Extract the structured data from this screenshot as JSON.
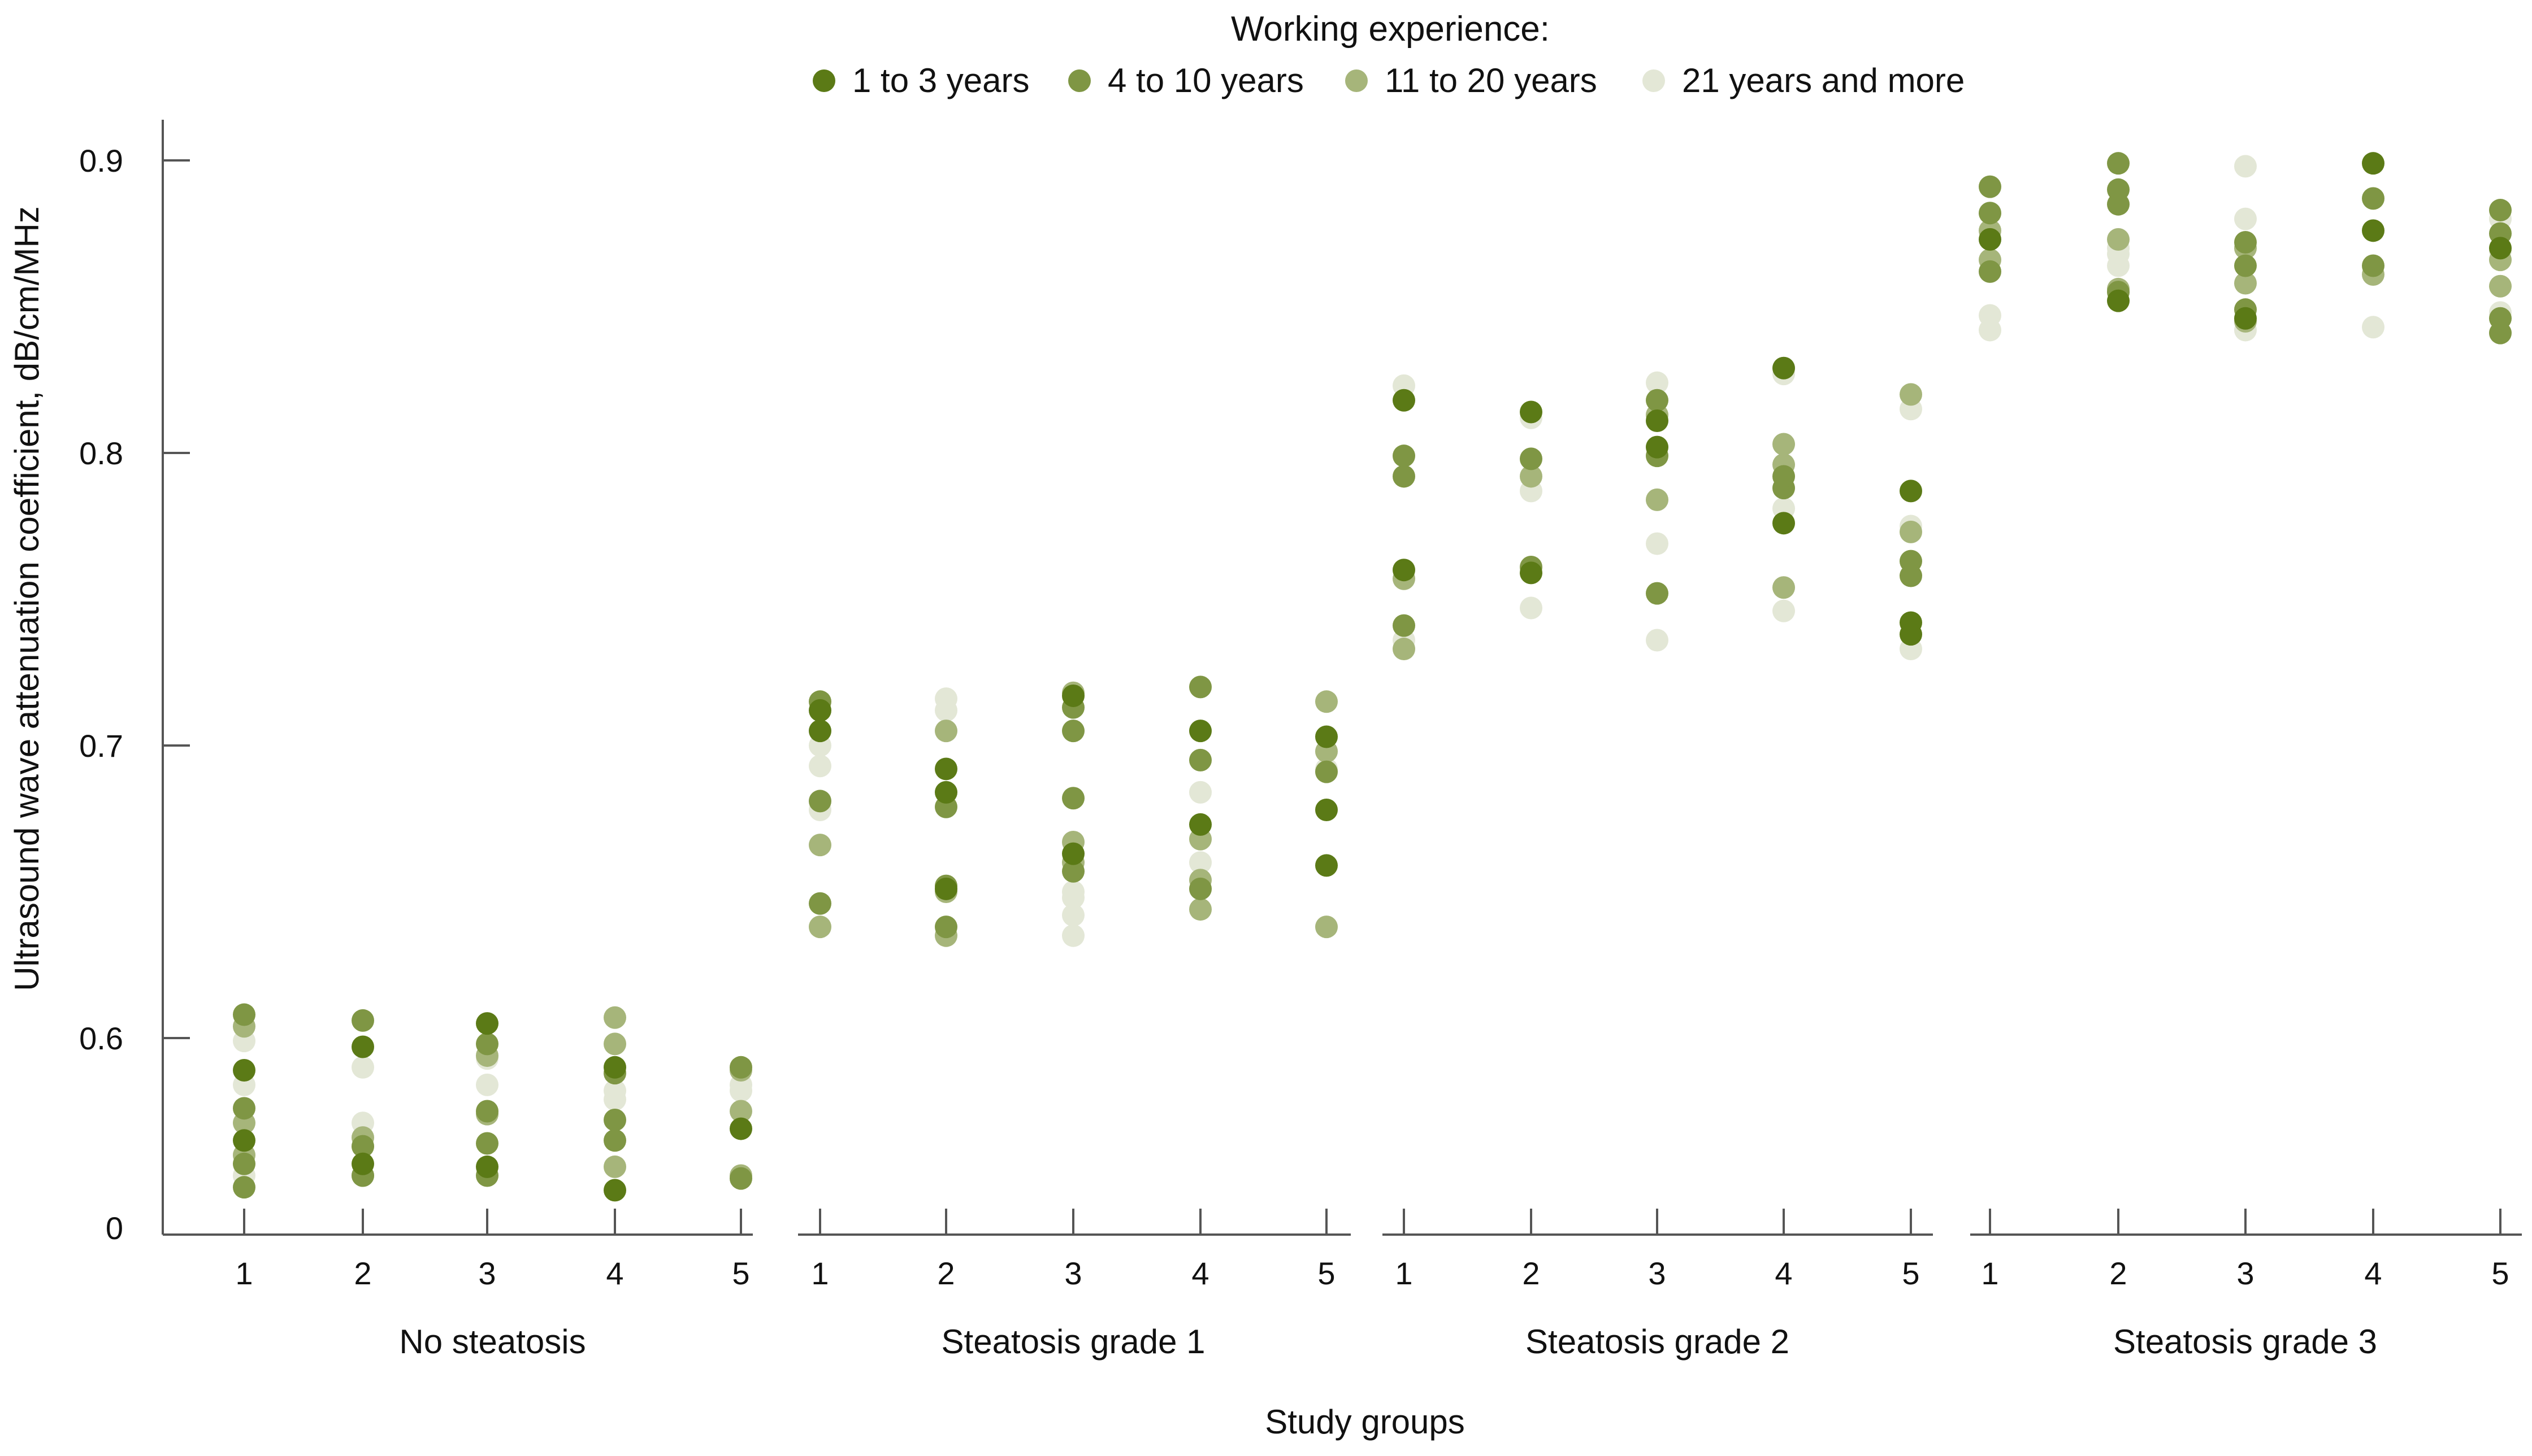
{
  "chart_data": {
    "type": "scatter",
    "title": "",
    "xlabel": "Study groups",
    "ylabel": "Ultrasound wave attenuation coefficient, dB/cm/MHz",
    "ylim": [
      0.53,
      0.91
    ],
    "y_ticks": [
      0.6,
      0.7,
      0.8,
      0.9
    ],
    "y_tick_labels": [
      "0.6",
      "0.7",
      "0.8",
      "0.9"
    ],
    "y_origin_label": "0",
    "grid": false,
    "legend": {
      "title": "Working experience:",
      "placement": "top-center"
    },
    "panels": [
      {
        "label": "No steatosis",
        "categories": [
          "1",
          "2",
          "3",
          "4",
          "5"
        ]
      },
      {
        "label": "Steatosis grade 1",
        "categories": [
          "1",
          "2",
          "3",
          "4",
          "5"
        ]
      },
      {
        "label": "Steatosis grade 2",
        "categories": [
          "1",
          "2",
          "3",
          "4",
          "5"
        ]
      },
      {
        "label": "Steatosis grade 3",
        "categories": [
          "1",
          "2",
          "3",
          "4",
          "5"
        ]
      }
    ],
    "series": [
      {
        "name": "1 to 3 years",
        "color": "#5b7a16",
        "values": [
          [
            [
              0.589,
              0.565
            ],
            [
              0.597,
              0.557
            ],
            [
              0.605,
              0.556
            ],
            [
              0.59,
              0.548
            ],
            [
              0.569
            ]
          ],
          [
            [
              0.712,
              0.705
            ],
            [
              0.692,
              0.684,
              0.651
            ],
            [
              0.717,
              0.663
            ],
            [
              0.705,
              0.673
            ],
            [
              0.703,
              0.678,
              0.659
            ]
          ],
          [
            [
              0.818,
              0.76
            ],
            [
              0.814,
              0.759
            ],
            [
              0.811,
              0.802
            ],
            [
              0.829,
              0.776
            ],
            [
              0.787,
              0.742,
              0.738
            ]
          ],
          [
            [
              0.873
            ],
            [
              0.852
            ],
            [
              0.846
            ],
            [
              0.899,
              0.876
            ],
            [
              0.87
            ]
          ]
        ]
      },
      {
        "name": "4 to 10 years",
        "color": "#7f9644",
        "values": [
          [
            [
              0.608,
              0.576,
              0.557,
              0.549
            ],
            [
              0.606,
              0.563,
              0.553
            ],
            [
              0.598,
              0.575,
              0.564,
              0.553
            ],
            [
              0.588,
              0.572,
              0.565
            ],
            [
              0.59,
              0.552
            ]
          ],
          [
            [
              0.715,
              0.681,
              0.646
            ],
            [
              0.679,
              0.652,
              0.638
            ],
            [
              0.713,
              0.705,
              0.682,
              0.657
            ],
            [
              0.72,
              0.695,
              0.651
            ],
            [
              0.691
            ]
          ],
          [
            [
              0.799,
              0.792,
              0.741
            ],
            [
              0.798,
              0.761
            ],
            [
              0.818,
              0.799,
              0.752
            ],
            [
              0.788,
              0.792
            ],
            [
              0.763,
              0.758
            ]
          ],
          [
            [
              0.891,
              0.882,
              0.862
            ],
            [
              0.899,
              0.89,
              0.885,
              0.855
            ],
            [
              0.872,
              0.864,
              0.849
            ],
            [
              0.887,
              0.864
            ],
            [
              0.883,
              0.875,
              0.841,
              0.846
            ]
          ]
        ]
      },
      {
        "name": "11 to 20 years",
        "color": "#a6b57a",
        "values": [
          [
            [
              0.604,
              0.571,
              0.56
            ],
            [
              0.553,
              0.566
            ],
            [
              0.594,
              0.574
            ],
            [
              0.607,
              0.598,
              0.556
            ],
            [
              0.589,
              0.575,
              0.553
            ]
          ],
          [
            [
              0.666,
              0.638
            ],
            [
              0.705,
              0.65,
              0.635
            ],
            [
              0.718,
              0.667,
              0.66
            ],
            [
              0.644,
              0.654,
              0.668
            ],
            [
              0.715,
              0.698,
              0.638
            ]
          ],
          [
            [
              0.757,
              0.733
            ],
            [
              0.792
            ],
            [
              0.813,
              0.784
            ],
            [
              0.803,
              0.754,
              0.796
            ],
            [
              0.82,
              0.773
            ]
          ],
          [
            [
              0.866,
              0.876
            ],
            [
              0.873,
              0.856
            ],
            [
              0.87,
              0.858,
              0.845
            ],
            [
              0.861
            ],
            [
              0.857,
              0.866
            ]
          ]
        ]
      },
      {
        "name": "21 years and more",
        "color": "#e3e7d6",
        "values": [
          [
            [
              0.599,
              0.584,
              0.553
            ],
            [
              0.59,
              0.571
            ],
            [
              0.593,
              0.584,
              0.553
            ],
            [
              0.582,
              0.579
            ],
            [
              0.584,
              0.582
            ]
          ],
          [
            [
              0.693,
              0.7,
              0.678
            ],
            [
              0.716,
              0.712
            ],
            [
              0.648,
              0.642,
              0.635,
              0.65
            ],
            [
              0.684,
              0.66
            ],
            [
              0.698,
              0.692
            ]
          ],
          [
            [
              0.823,
              0.736
            ],
            [
              0.812,
              0.787,
              0.747
            ],
            [
              0.824,
              0.769,
              0.736
            ],
            [
              0.827,
              0.781,
              0.746
            ],
            [
              0.815,
              0.775,
              0.733
            ]
          ],
          [
            [
              0.847,
              0.842
            ],
            [
              0.87,
              0.864,
              0.868
            ],
            [
              0.898,
              0.88,
              0.842
            ],
            [
              0.843
            ],
            [
              0.88,
              0.848,
              0.869
            ]
          ]
        ]
      }
    ]
  }
}
